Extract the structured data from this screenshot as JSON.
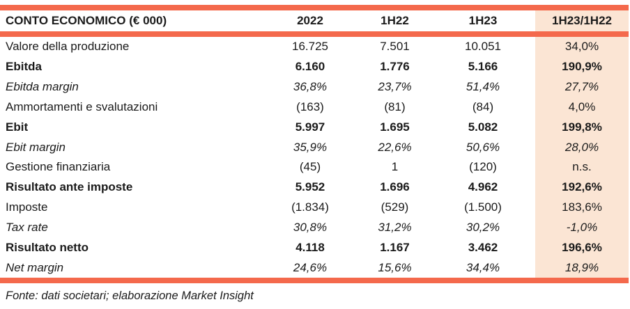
{
  "table": {
    "title": "CONTO ECONOMICO (€ 000)",
    "columns": [
      "2022",
      "1H22",
      "1H23",
      "1H23/1H22"
    ],
    "rows": [
      {
        "label": "Valore della produzione",
        "style": "regular",
        "values": [
          "16.725",
          "7.501",
          "10.051",
          "34,0%"
        ]
      },
      {
        "label": "Ebitda",
        "style": "bold",
        "values": [
          "6.160",
          "1.776",
          "5.166",
          "190,9%"
        ]
      },
      {
        "label": "Ebitda margin",
        "style": "italic",
        "values": [
          "36,8%",
          "23,7%",
          "51,4%",
          "27,7%"
        ]
      },
      {
        "label": "Ammortamenti e svalutazioni",
        "style": "regular",
        "values": [
          "(163)",
          "(81)",
          "(84)",
          "4,0%"
        ]
      },
      {
        "label": "Ebit",
        "style": "bold",
        "values": [
          "5.997",
          "1.695",
          "5.082",
          "199,8%"
        ]
      },
      {
        "label": "Ebit margin",
        "style": "italic",
        "values": [
          "35,9%",
          "22,6%",
          "50,6%",
          "28,0%"
        ]
      },
      {
        "label": "Gestione finanziaria",
        "style": "regular",
        "values": [
          "(45)",
          "1",
          "(120)",
          "n.s."
        ]
      },
      {
        "label": "Risultato ante imposte",
        "style": "bold",
        "values": [
          "5.952",
          "1.696",
          "4.962",
          "192,6%"
        ]
      },
      {
        "label": "Imposte",
        "style": "regular",
        "values": [
          "(1.834)",
          "(529)",
          "(1.500)",
          "183,6%"
        ]
      },
      {
        "label": "Tax rate",
        "style": "italic",
        "values": [
          "30,8%",
          "31,2%",
          "30,2%",
          "-1,0%"
        ]
      },
      {
        "label": "Risultato netto",
        "style": "bold",
        "values": [
          "4.118",
          "1.167",
          "3.462",
          "196,6%"
        ]
      },
      {
        "label": "Net margin",
        "style": "italic",
        "values": [
          "24,6%",
          "15,6%",
          "34,4%",
          "18,9%"
        ]
      }
    ],
    "footer": "Fonte: dati societari; elaborazione Market Insight"
  },
  "colors": {
    "accent_bar": "#f4694c",
    "highlight_column_bg": "#fbe5d4",
    "text": "#1a1a1a"
  }
}
